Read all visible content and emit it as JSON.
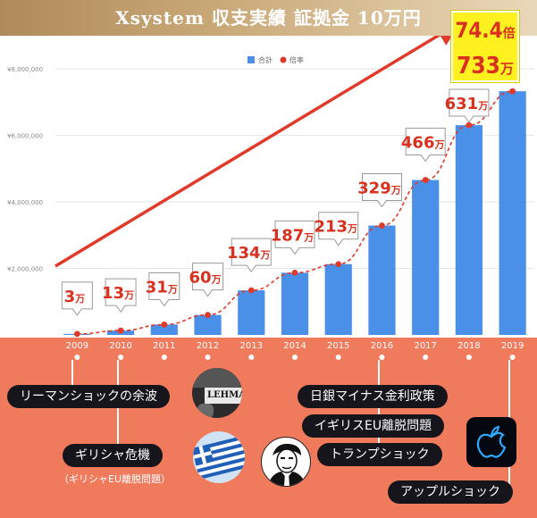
{
  "title": "Xsystem 収支実績 証拠金 10万円",
  "legend": {
    "total": "合計",
    "rate": "倍率"
  },
  "big_callout": {
    "rate": "74.4",
    "rate_unit": "倍",
    "amount": "733",
    "amount_unit": "万"
  },
  "chart_data": {
    "type": "bar",
    "categories": [
      "2009",
      "2010",
      "2011",
      "2012",
      "2013",
      "2014",
      "2015",
      "2016",
      "2017",
      "2018",
      "2019"
    ],
    "series": [
      {
        "name": "合計",
        "values": [
          30000,
          130000,
          310000,
          600000,
          1340000,
          1870000,
          2130000,
          3290000,
          4660000,
          6310000,
          7330000
        ],
        "color": "#4a8fe8"
      },
      {
        "name": "倍率",
        "type": "line",
        "values": [
          30000,
          130000,
          310000,
          600000,
          1340000,
          1870000,
          2130000,
          3290000,
          4660000,
          6310000,
          7330000
        ],
        "color": "#e03a2a"
      }
    ],
    "data_labels": [
      "3",
      "13",
      "31",
      "60",
      "134",
      "187",
      "213",
      "329",
      "466",
      "631"
    ],
    "data_label_unit": "万",
    "yticks": [
      "¥2,000,000",
      "¥4,000,000",
      "¥6,000,000",
      "¥8,000,000"
    ],
    "ytick_values": [
      2000000,
      4000000,
      6000000,
      8000000
    ],
    "ylim": [
      0,
      9000000
    ],
    "grid": true,
    "legend_position": "top-center"
  },
  "events": {
    "lehman": "リーマンショックの余波",
    "greece": "ギリシャ危機",
    "greece_sub": "（ギリシャEU離脱問題）",
    "boj": "日銀マイナス金利政策",
    "brexit": "イギリスEU離脱問題",
    "trump": "トランプショック",
    "apple": "アップルショック"
  },
  "image_text": {
    "lehman_sign": "LEHMA"
  },
  "colors": {
    "bar": "#4a8fe8",
    "line": "#e03a2a",
    "callout_text": "#d9311f",
    "panel": "#f07a5c",
    "big_callout_bg": "#fff01f"
  }
}
